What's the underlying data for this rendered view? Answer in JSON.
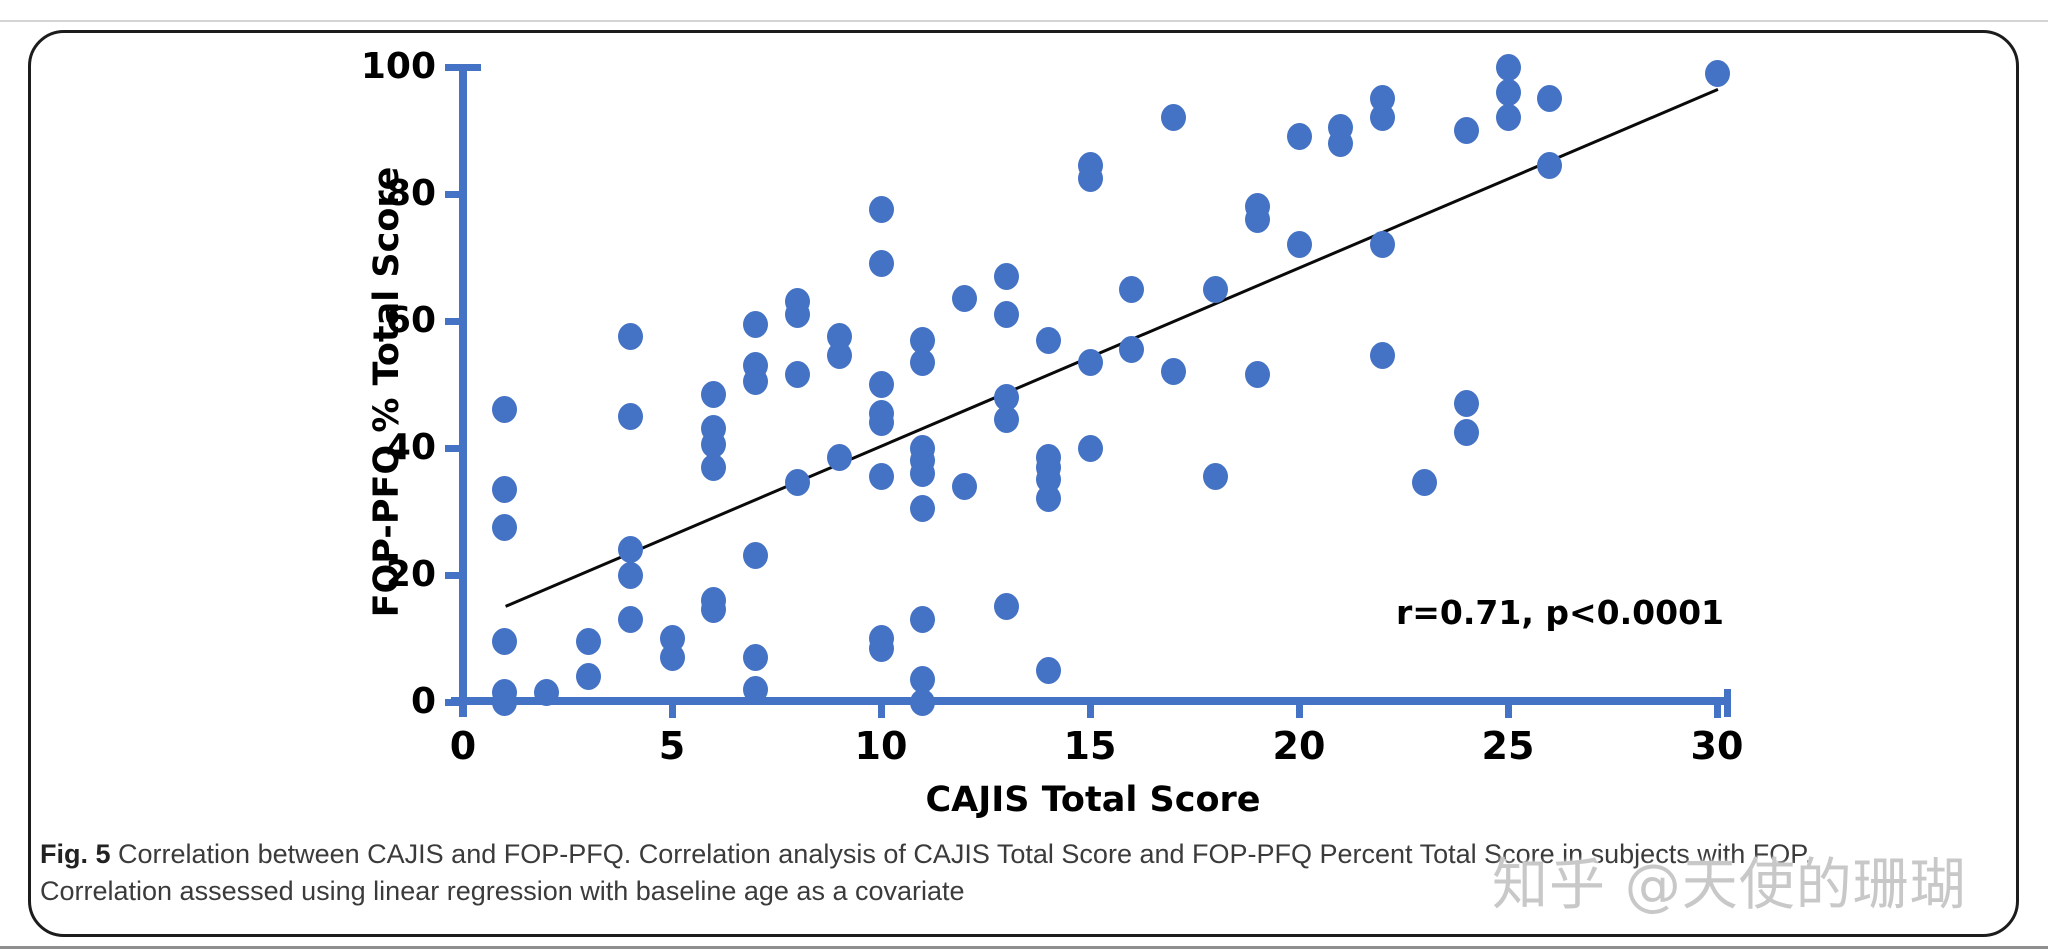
{
  "colors": {
    "axis_blue": "#4472C4",
    "marker_blue": "#4472C4",
    "regression_black": "#0a0a0a",
    "caption_text": "#3b3b3b",
    "watermark_gray": "#c8c8c8",
    "border_black": "#1c1c1c"
  },
  "chart_data": {
    "type": "scatter",
    "xlabel": "CAJIS Total Score",
    "ylabel": "FOP-PFQ % Total Score",
    "xlim": [
      0,
      30
    ],
    "ylim": [
      0,
      100
    ],
    "x_ticks": [
      0,
      5,
      10,
      15,
      20,
      25,
      30
    ],
    "y_ticks": [
      0,
      20,
      40,
      60,
      80,
      100
    ],
    "grid": false,
    "annotation": "r=0.71, p<0.0001",
    "regression_line": {
      "x1": 1.0,
      "y1": 15.3,
      "x2": 30.0,
      "y2": 96.7
    },
    "points": [
      [
        1,
        46
      ],
      [
        1,
        33.5
      ],
      [
        1,
        27.5
      ],
      [
        1,
        9.5
      ],
      [
        1,
        1.5
      ],
      [
        1,
        0
      ],
      [
        2,
        1.5
      ],
      [
        3,
        9.5
      ],
      [
        3,
        4
      ],
      [
        4,
        57.5
      ],
      [
        4,
        45
      ],
      [
        4,
        24
      ],
      [
        4,
        20
      ],
      [
        4,
        13
      ],
      [
        5,
        10
      ],
      [
        5,
        7
      ],
      [
        6,
        48.5
      ],
      [
        6,
        43
      ],
      [
        6,
        40.5
      ],
      [
        6,
        37
      ],
      [
        6,
        16
      ],
      [
        6,
        14.5
      ],
      [
        7,
        59.5
      ],
      [
        7,
        53
      ],
      [
        7,
        50.5
      ],
      [
        7,
        23
      ],
      [
        7,
        7
      ],
      [
        7,
        2
      ],
      [
        8,
        63
      ],
      [
        8,
        61
      ],
      [
        8,
        51.5
      ],
      [
        8,
        34.5
      ],
      [
        9,
        57.5
      ],
      [
        9,
        54.5
      ],
      [
        9,
        38.5
      ],
      [
        10,
        77.5
      ],
      [
        10,
        69
      ],
      [
        10,
        50
      ],
      [
        10,
        45.5
      ],
      [
        10,
        44
      ],
      [
        10,
        35.5
      ],
      [
        10,
        10
      ],
      [
        10,
        8.5
      ],
      [
        11,
        57
      ],
      [
        11,
        53.5
      ],
      [
        11,
        40
      ],
      [
        11,
        38
      ],
      [
        11,
        36
      ],
      [
        11,
        30.5
      ],
      [
        11,
        13
      ],
      [
        11,
        3.5
      ],
      [
        11,
        0
      ],
      [
        12,
        63.5
      ],
      [
        12,
        34
      ],
      [
        13,
        67
      ],
      [
        13,
        61
      ],
      [
        13,
        48
      ],
      [
        13,
        44.5
      ],
      [
        13,
        15
      ],
      [
        14,
        57
      ],
      [
        14,
        38.5
      ],
      [
        14,
        37
      ],
      [
        14,
        35
      ],
      [
        14,
        32
      ],
      [
        14,
        5
      ],
      [
        15,
        84.5
      ],
      [
        15,
        82.5
      ],
      [
        15,
        53.5
      ],
      [
        15,
        40
      ],
      [
        16,
        65
      ],
      [
        16,
        55.5
      ],
      [
        17,
        92
      ],
      [
        17,
        52
      ],
      [
        18,
        65
      ],
      [
        18,
        35.5
      ],
      [
        19,
        78
      ],
      [
        19,
        76
      ],
      [
        19,
        51.5
      ],
      [
        20,
        89
      ],
      [
        20,
        72
      ],
      [
        21,
        90.5
      ],
      [
        21,
        88
      ],
      [
        22,
        95
      ],
      [
        22,
        92
      ],
      [
        22,
        72
      ],
      [
        22,
        54.5
      ],
      [
        23,
        34.5
      ],
      [
        24,
        90
      ],
      [
        24,
        47
      ],
      [
        24,
        42.5
      ],
      [
        25,
        100
      ],
      [
        25,
        96
      ],
      [
        25,
        92
      ],
      [
        26,
        95
      ],
      [
        26,
        84.5
      ],
      [
        30,
        99
      ]
    ]
  },
  "caption": {
    "fig_label": "Fig. 5",
    "line1_rest": " Correlation between CAJIS and FOP-PFQ. Correlation analysis of CAJIS Total Score and FOP-PFQ Percent Total Score in subjects with FOP.",
    "line2": "Correlation assessed using linear regression with baseline age as a covariate"
  },
  "watermark": {
    "text": "知乎 @天使的珊瑚"
  }
}
